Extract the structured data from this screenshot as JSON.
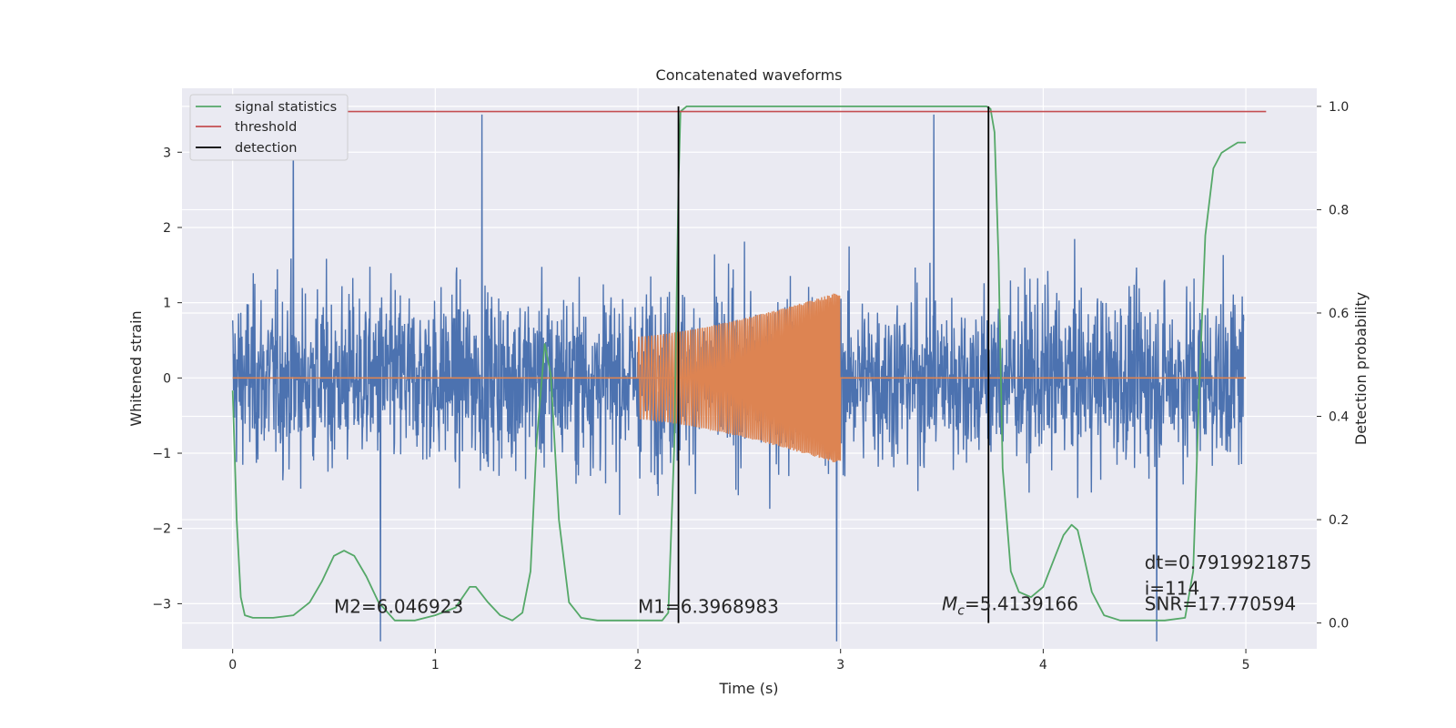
{
  "chart_data": {
    "type": "line",
    "title": "Concatenated waveforms",
    "xlabel": "Time (s)",
    "ylabel": "Whitened strain",
    "ylabel_right": "Detection probability",
    "xlim": [
      -0.25,
      5.35
    ],
    "ylim": [
      -3.6,
      3.85
    ],
    "ylim_right": [
      -0.05,
      1.035
    ],
    "xticks": [
      0,
      1,
      2,
      3,
      4,
      5
    ],
    "yticks": [
      -3,
      -2,
      -1,
      0,
      1,
      2,
      3
    ],
    "yticks_right": [
      0.0,
      0.2,
      0.4,
      0.6,
      0.8,
      1.0
    ],
    "grid": true,
    "legend_position": "top-left",
    "colors": {
      "strain": "#4c72b0",
      "template": "#dd8452",
      "signal_statistics": "#55a868",
      "threshold": "#c44e52",
      "detection": "#000000",
      "axes_bg": "#eaeaf2"
    },
    "series": [
      {
        "name": "signal statistics",
        "axis": "right",
        "x": [
          0.0,
          0.02,
          0.04,
          0.06,
          0.1,
          0.2,
          0.3,
          0.38,
          0.44,
          0.5,
          0.55,
          0.6,
          0.66,
          0.72,
          0.8,
          0.9,
          1.0,
          1.1,
          1.17,
          1.2,
          1.26,
          1.32,
          1.38,
          1.43,
          1.47,
          1.5,
          1.54,
          1.57,
          1.61,
          1.66,
          1.72,
          1.8,
          2.0,
          2.12,
          2.15,
          2.18,
          2.2,
          2.21,
          2.24,
          2.3,
          3.0,
          3.5,
          3.72,
          3.74,
          3.76,
          3.78,
          3.8,
          3.84,
          3.88,
          3.94,
          4.0,
          4.06,
          4.1,
          4.14,
          4.17,
          4.2,
          4.24,
          4.3,
          4.38,
          4.5,
          4.6,
          4.7,
          4.74,
          4.77,
          4.8,
          4.84,
          4.88,
          4.92,
          4.96,
          5.0
        ],
        "y": [
          0.45,
          0.2,
          0.05,
          0.015,
          0.01,
          0.01,
          0.015,
          0.04,
          0.08,
          0.13,
          0.14,
          0.13,
          0.09,
          0.04,
          0.005,
          0.005,
          0.015,
          0.03,
          0.07,
          0.07,
          0.04,
          0.015,
          0.005,
          0.02,
          0.1,
          0.35,
          0.54,
          0.48,
          0.2,
          0.04,
          0.01,
          0.005,
          0.005,
          0.005,
          0.02,
          0.35,
          0.85,
          0.99,
          1.0,
          1.0,
          1.0,
          1.0,
          1.0,
          0.995,
          0.95,
          0.7,
          0.3,
          0.1,
          0.06,
          0.05,
          0.07,
          0.13,
          0.17,
          0.19,
          0.18,
          0.13,
          0.06,
          0.015,
          0.005,
          0.005,
          0.005,
          0.01,
          0.1,
          0.45,
          0.75,
          0.88,
          0.91,
          0.92,
          0.93,
          0.93
        ]
      },
      {
        "name": "threshold",
        "axis": "right",
        "x": [
          0.0,
          5.1
        ],
        "y": [
          0.99,
          0.99
        ]
      },
      {
        "name": "detection",
        "axis": "right",
        "x": [
          2.2,
          3.73
        ],
        "y_range": [
          0.0,
          1.0
        ]
      }
    ],
    "strain": {
      "x_start": 0.0,
      "x_end": 4.99,
      "typical_amplitude": 1.3,
      "peak_amplitude": 3.5,
      "spike_times": [
        0.3,
        0.73,
        1.23,
        2.98,
        3.46,
        4.56
      ]
    },
    "template": {
      "x_start": 2.0,
      "x_end": 3.0,
      "amplitude_start": 0.55,
      "amplitude_end": 1.15,
      "flat_x": [
        0.0,
        5.0
      ],
      "flat_y": 0.0
    },
    "annotations": [
      {
        "text": "M2=6.046923",
        "x": 0.5,
        "y_right": 0.02
      },
      {
        "text": "M1=6.3968983",
        "x": 2.0,
        "y_right": 0.02
      },
      {
        "prefix": "M",
        "sub": "c",
        "suffix": "=5.4139166",
        "x": 3.5,
        "y_right": 0.025
      },
      {
        "text": "dt=0.7919921875",
        "x": 4.5,
        "y_right": 0.105
      },
      {
        "text": " i=114",
        "x": 4.5,
        "y_right": 0.055
      },
      {
        "text": "SNR=17.770594",
        "x": 4.5,
        "y_right": 0.025
      }
    ]
  }
}
